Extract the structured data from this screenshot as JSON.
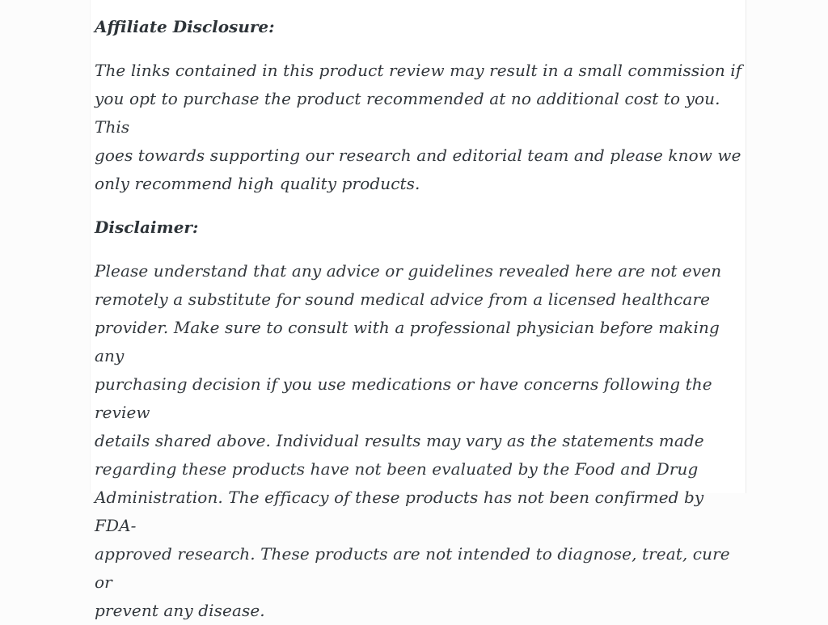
{
  "page": {
    "background_color": "#fcfcfc",
    "content_background_color": "#ffffff",
    "text_color": "#32373c",
    "heading_color": "#2d3338"
  },
  "sections": [
    {
      "heading": "Affiliate Disclosure:",
      "body": "The links contained in this product review may result in a small commission if\nyou opt to purchase the product recommended at no additional cost to you. This\ngoes towards supporting our research and editorial team and please know we\nonly recommend high quality products."
    },
    {
      "heading": "Disclaimer:",
      "body": "Please understand that any advice or guidelines revealed here are not even\nremotely a substitute for sound medical advice from a licensed healthcare\nprovider. Make sure to consult with a professional physician before making any\npurchasing decision if you use medications or have concerns following the review\ndetails shared above. Individual results may vary as the statements made\nregarding these products have not been evaluated by the Food and Drug\nAdministration. The efficacy of these products has not been confirmed by FDA-\napproved research. These products are not intended to diagnose, treat, cure or\nprevent any disease."
    }
  ]
}
